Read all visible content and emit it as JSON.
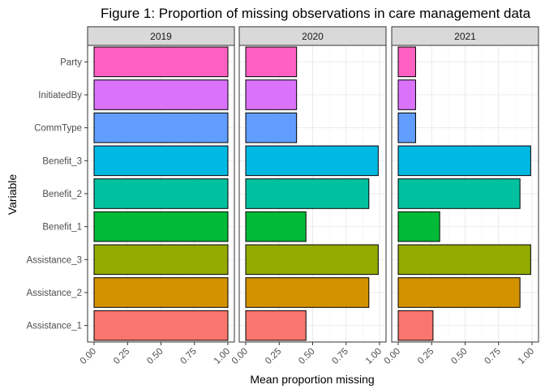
{
  "chart_data": {
    "type": "bar",
    "orientation": "horizontal",
    "title": "Figure 1: Proportion of missing observations in care management data",
    "xlabel": "Mean proportion missing",
    "ylabel": "Variable",
    "xlim": [
      0,
      1
    ],
    "x_ticks": [
      "0.00",
      "0.25",
      "0.50",
      "0.75",
      "1.00"
    ],
    "x_tick_values": [
      0,
      0.25,
      0.5,
      0.75,
      1.0
    ],
    "grid": true,
    "legend": "none",
    "categories": [
      "Party",
      "InitiatedBy",
      "CommType",
      "Benefit_3",
      "Benefit_2",
      "Benefit_1",
      "Assistance_3",
      "Assistance_2",
      "Assistance_1"
    ],
    "colors": [
      "#FF61C3",
      "#DB72FB",
      "#619CFF",
      "#00B9E3",
      "#00C19F",
      "#00BA38",
      "#93AA00",
      "#D39200",
      "#F8766D"
    ],
    "facets": [
      {
        "name": "2019",
        "values": [
          1.0,
          1.0,
          1.0,
          1.0,
          1.0,
          1.0,
          1.0,
          1.0,
          1.0
        ]
      },
      {
        "name": "2020",
        "values": [
          0.38,
          0.38,
          0.38,
          0.99,
          0.92,
          0.45,
          0.99,
          0.92,
          0.45
        ]
      },
      {
        "name": "2021",
        "values": [
          0.13,
          0.13,
          0.13,
          0.99,
          0.91,
          0.31,
          0.99,
          0.91,
          0.26
        ]
      }
    ]
  }
}
